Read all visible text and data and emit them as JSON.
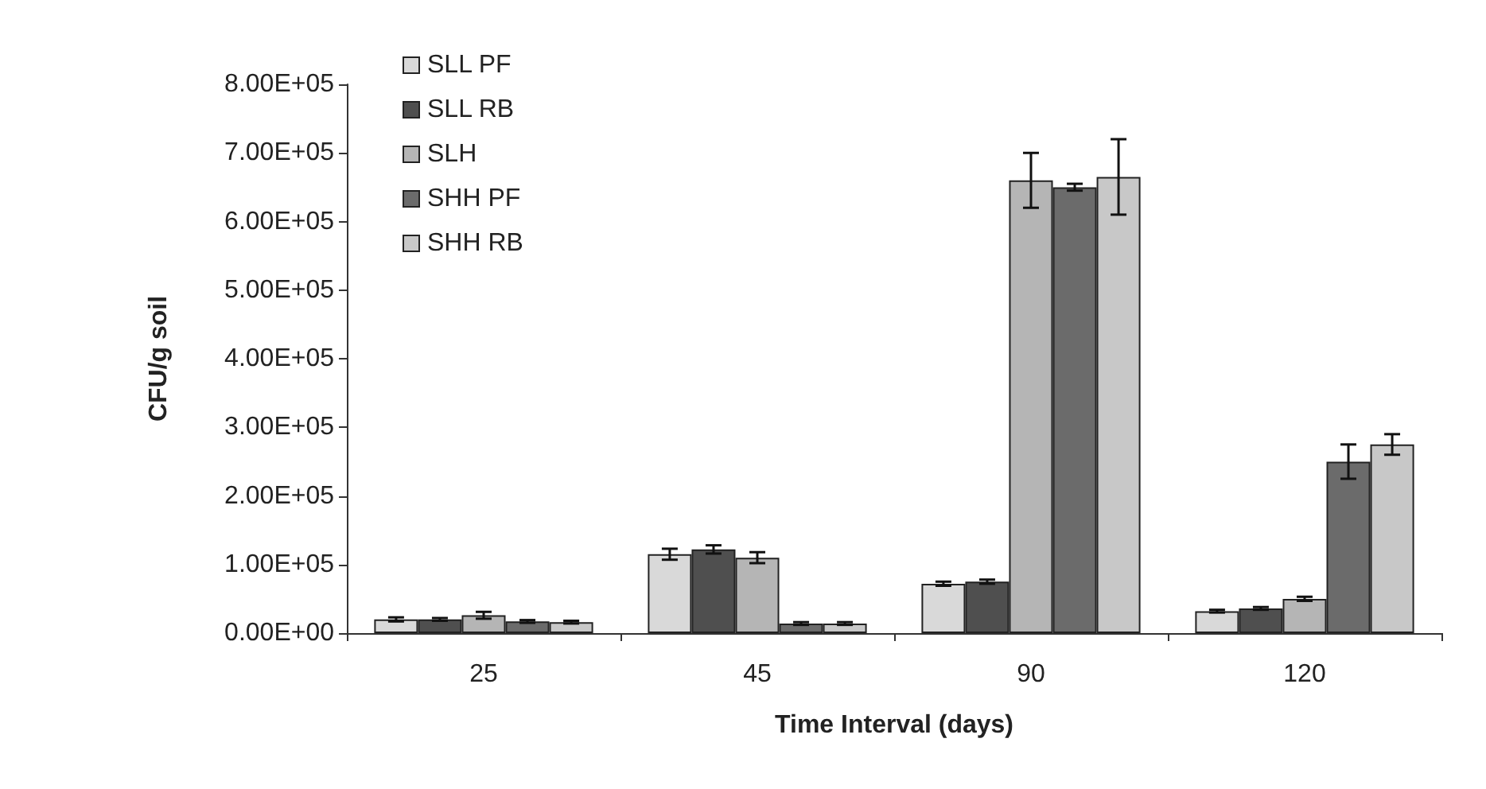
{
  "chart_data": {
    "type": "bar",
    "xlabel": "Time Interval (days)",
    "ylabel": "CFU/g soil",
    "categories": [
      "25",
      "45",
      "90",
      "120"
    ],
    "series": [
      {
        "name": "SLL PF",
        "color": "#d9d9d9",
        "values": [
          20000,
          115000,
          72000,
          32000
        ],
        "errors": [
          3000,
          8000,
          3000,
          2000
        ]
      },
      {
        "name": "SLL RB",
        "color": "#4f4f4f",
        "values": [
          20000,
          122000,
          75000,
          36000
        ],
        "errors": [
          2000,
          6000,
          3000,
          2000
        ]
      },
      {
        "name": "SLH",
        "color": "#b5b5b5",
        "values": [
          26000,
          110000,
          660000,
          50000
        ],
        "errors": [
          5000,
          8000,
          40000,
          3000
        ]
      },
      {
        "name": "SHH PF",
        "color": "#6b6b6b",
        "values": [
          17000,
          14000,
          650000,
          250000
        ],
        "errors": [
          2000,
          2000,
          5000,
          25000
        ]
      },
      {
        "name": "SHH RB",
        "color": "#c8c8c8",
        "values": [
          16000,
          14000,
          665000,
          275000
        ],
        "errors": [
          2000,
          2000,
          55000,
          15000
        ]
      }
    ],
    "ylim": [
      0,
      800000
    ],
    "yticks": [
      {
        "value": 0,
        "label": "0.00E+00"
      },
      {
        "value": 100000,
        "label": "1.00E+05"
      },
      {
        "value": 200000,
        "label": "2.00E+05"
      },
      {
        "value": 300000,
        "label": "3.00E+05"
      },
      {
        "value": 400000,
        "label": "4.00E+05"
      },
      {
        "value": 500000,
        "label": "5.00E+05"
      },
      {
        "value": 600000,
        "label": "6.00E+05"
      },
      {
        "value": 700000,
        "label": "7.00E+05"
      },
      {
        "value": 800000,
        "label": "8.00E+05"
      }
    ],
    "grid": false,
    "legend": "top left"
  }
}
